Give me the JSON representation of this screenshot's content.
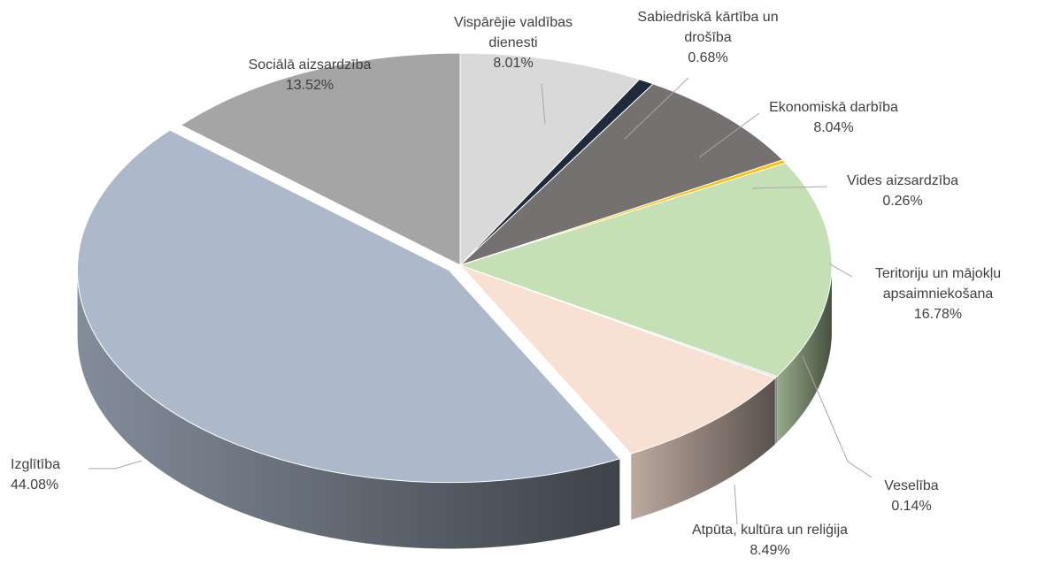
{
  "chart_data": {
    "type": "pie",
    "categories": [
      "Vispārējie valdības dienesti",
      "Sabiedriskā kārtība un drošība",
      "Ekonomiskā darbība",
      "Vides aizsardzība",
      "Teritoriju un mājokļu apsaimniekošana",
      "Veselība",
      "Atpūta, kultūra un reliģija",
      "Izglītība",
      "Sociālā aizsardzība"
    ],
    "values": [
      8.01,
      0.68,
      8.04,
      0.26,
      16.78,
      0.14,
      8.49,
      44.08,
      13.52
    ],
    "value_labels": [
      "8.01%",
      "0.68%",
      "8.04%",
      "0.26%",
      "16.78%",
      "0.14%",
      "8.49%",
      "44.08%",
      "13.52%"
    ],
    "colors": [
      "#d9d9d9",
      "#1f2a3a",
      "#767171",
      "#ffc000",
      "#c5e0b4",
      "#dae3f3",
      "#f8e0d2",
      "#adb9ca",
      "#a5a5a5"
    ]
  }
}
